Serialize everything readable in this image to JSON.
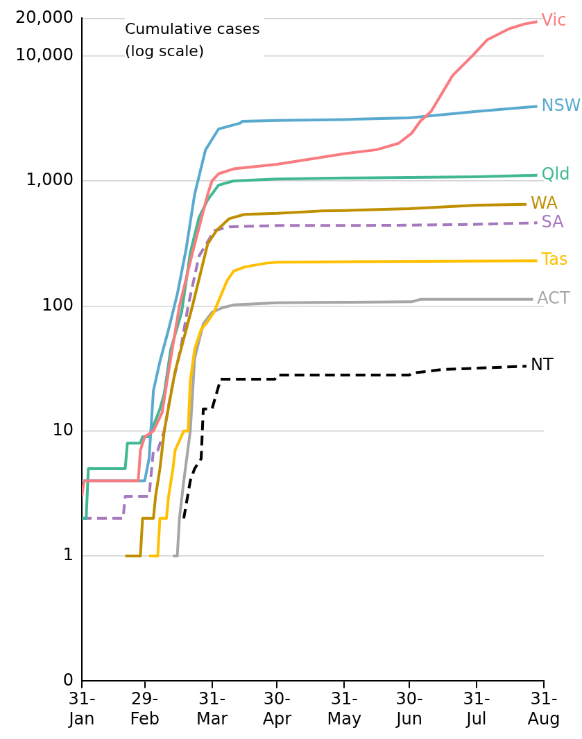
{
  "chart_data": {
    "type": "line",
    "title": "Cumulative cases (log scale)",
    "log": "y",
    "grid": "y",
    "legend": false,
    "marker": "none",
    "line_style": "solid",
    "xlim": [
      "--01-31",
      "--08-31"
    ],
    "xticks": [
      {
        "value": "--01-31",
        "label": "31-Jan"
      },
      {
        "value": "--02-29",
        "label": "29-Feb"
      },
      {
        "value": "--03-31",
        "label": "31-Mar"
      },
      {
        "value": "--04-30",
        "label": "30-Apr"
      },
      {
        "value": "--05-31",
        "label": "31-May"
      },
      {
        "value": "--06-30",
        "label": "30-Jun"
      },
      {
        "value": "--07-31",
        "label": "31-Jul"
      },
      {
        "value": "--08-31",
        "label": "31-Aug"
      }
    ],
    "ylim": [
      0.1,
      20000
    ],
    "yticks": [
      {
        "value": 0.1,
        "label": "0"
      },
      1,
      10,
      100,
      {
        "value": 1000,
        "label": "1,000"
      },
      {
        "value": 10000,
        "label": "10,000"
      },
      {
        "value": 20000,
        "label": "20,000"
      }
    ],
    "series": [
      {
        "name": "Vic",
        "color": "#f87c80",
        "x": [
          "--01-31",
          "--02-01",
          "--02-26",
          "--02-27",
          "--02-29",
          "--03-04",
          "--03-08",
          "--03-11",
          "--03-16",
          "--03-22",
          "--03-29",
          "--03-31",
          "--04-03",
          "--04-10",
          "--04-30",
          "--05-31",
          "--06-15",
          "--06-25",
          "--07-01",
          "--07-05",
          "--07-10",
          "--07-20",
          "--07-29",
          "--08-05",
          "--08-15",
          "--08-22",
          "--08-28"
        ],
        "values": [
          3,
          4,
          4,
          7,
          9,
          10,
          14,
          30,
          100,
          266,
          780,
          1000,
          1140,
          1250,
          1360,
          1650,
          1780,
          2000,
          2400,
          3000,
          3600,
          7000,
          10000,
          13500,
          16500,
          18000,
          18800
        ]
      },
      {
        "name": "NSW",
        "color": "#5aaad0",
        "x": [
          "--01-31",
          "--02-29",
          "--03-02",
          "--03-04",
          "--03-07",
          "--03-11",
          "--03-15",
          "--03-19",
          "--03-23",
          "--03-28",
          "--04-03",
          "--04-13",
          "--04-14",
          "--04-30",
          "--05-31",
          "--06-30",
          "--07-31",
          "--08-28"
        ],
        "values": [
          4,
          4,
          6,
          21,
          36,
          65,
          124,
          280,
          780,
          1770,
          2600,
          2900,
          3000,
          3050,
          3100,
          3200,
          3600,
          3950
        ]
      },
      {
        "name": "Qld",
        "color": "#40b894",
        "x": [
          "--01-31",
          "--02-02",
          "--02-03",
          "--02-20",
          "--02-21",
          "--02-27",
          "--02-28",
          "--03-02",
          "--03-04",
          "--03-07",
          "--03-09",
          "--03-12",
          "--03-17",
          "--03-21",
          "--03-25",
          "--03-29",
          "--04-03",
          "--04-10",
          "--04-30",
          "--05-31",
          "--06-30",
          "--07-31",
          "--08-28"
        ],
        "values": [
          2,
          2,
          5,
          5,
          8,
          8,
          9,
          9,
          11,
          15,
          20,
          45,
          89,
          266,
          510,
          705,
          925,
          1000,
          1035,
          1055,
          1067,
          1080,
          1110
        ]
      },
      {
        "name": "WA",
        "color": "#bf8f00",
        "x": [
          "--02-20",
          "--02-27",
          "--02-28",
          "--03-04",
          "--03-05",
          "--03-07",
          "--03-09",
          "--03-14",
          "--03-22",
          "--03-29",
          "--04-02",
          "--04-08",
          "--04-15",
          "--04-30",
          "--05-20",
          "--05-31",
          "--06-30",
          "--07-31",
          "--08-23"
        ],
        "values": [
          1,
          1,
          2,
          2,
          3,
          5,
          10,
          30,
          100,
          313,
          400,
          500,
          540,
          550,
          575,
          580,
          600,
          640,
          650
        ]
      },
      {
        "name": "SA",
        "color": "#a678bd",
        "line_style": "dashed",
        "x": [
          "--01-31",
          "--02-19",
          "--02-20",
          "--03-02",
          "--03-04",
          "--03-06",
          "--03-09",
          "--03-12",
          "--03-17",
          "--03-20",
          "--03-25",
          "--04-01",
          "--04-08",
          "--04-30",
          "--05-31",
          "--06-30",
          "--07-31",
          "--08-28"
        ],
        "values": [
          2,
          2,
          3,
          3,
          7,
          7,
          10,
          20,
          50,
          100,
          250,
          400,
          430,
          440,
          440,
          443,
          450,
          463
        ]
      },
      {
        "name": "Tas",
        "color": "#ffc000",
        "x": [
          "--03-02",
          "--03-06",
          "--03-07",
          "--03-10",
          "--03-11",
          "--03-13",
          "--03-14",
          "--03-18",
          "--03-20",
          "--03-21",
          "--03-23",
          "--03-26",
          "--03-29",
          "--04-01",
          "--04-04",
          "--04-07",
          "--04-10",
          "--04-15",
          "--04-25",
          "--04-30",
          "--08-28"
        ],
        "values": [
          1,
          1,
          2,
          2,
          3,
          5,
          7,
          10,
          10,
          25,
          45,
          65,
          75,
          90,
          120,
          160,
          190,
          205,
          220,
          224,
          230
        ]
      },
      {
        "name": "ACT",
        "color": "#a6a6a6",
        "x": [
          "--03-13",
          "--03-15",
          "--03-16",
          "--03-18",
          "--03-21",
          "--03-23",
          "--03-27",
          "--03-31",
          "--04-05",
          "--04-10",
          "--04-30",
          "--05-31",
          "--07-01",
          "--07-05",
          "--08-26"
        ],
        "values": [
          1,
          1,
          2,
          4,
          10,
          38,
          72,
          89,
          97,
          102,
          106,
          107,
          108,
          113,
          113
        ]
      },
      {
        "name": "NT",
        "color": "#000000",
        "line_style": "dashed",
        "x": [
          "--03-18",
          "--03-21",
          "--03-23",
          "--03-26",
          "--03-27",
          "--03-31",
          "--04-04",
          "--04-29",
          "--04-30",
          "--06-30",
          "--07-01",
          "--07-15",
          "--08-23"
        ],
        "values": [
          2,
          4,
          5,
          6,
          15,
          15,
          26,
          26,
          28,
          28,
          29,
          31,
          33
        ]
      }
    ]
  }
}
